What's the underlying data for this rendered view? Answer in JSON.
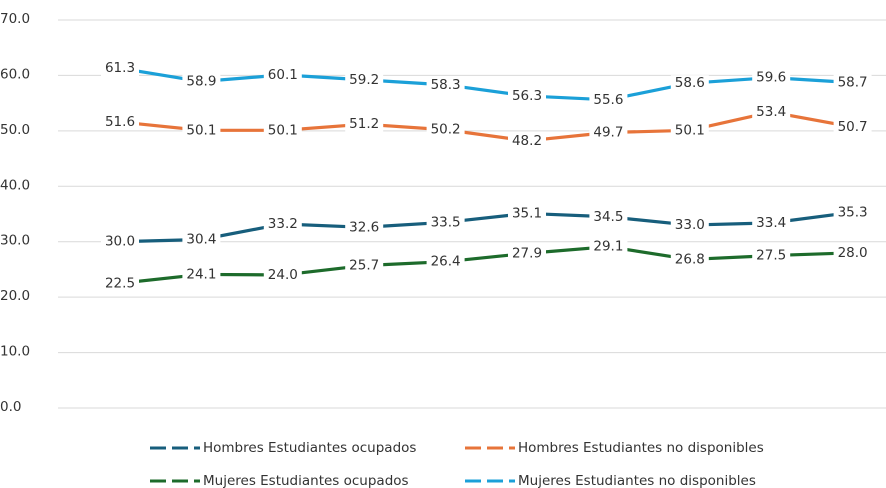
{
  "chart_data": {
    "type": "line",
    "categories": [
      null,
      null,
      null,
      null,
      null,
      null,
      null,
      null,
      null,
      null
    ],
    "ylim": [
      0,
      70
    ],
    "yticks": [
      {
        "value": 0,
        "label": "0.0"
      },
      {
        "value": 10,
        "label": "10.0"
      },
      {
        "value": 20,
        "label": "20.0"
      },
      {
        "value": 30,
        "label": "30.0"
      },
      {
        "value": 40,
        "label": "40.0"
      },
      {
        "value": 50,
        "label": "50.0"
      },
      {
        "value": 60,
        "label": "60.0"
      },
      {
        "value": 70,
        "label": "70.0"
      }
    ],
    "grid": true,
    "legend": "bottom",
    "series": [
      {
        "name": "Hombres Estudiantes ocupados",
        "color": "#175e7c",
        "values": [
          30,
          30.4,
          33.2,
          32.6,
          33.5,
          35.1,
          34.5,
          33,
          33.4,
          35.3
        ],
        "value_labels": [
          "30.0",
          "30.4",
          "33.2",
          "32.6",
          "33.5",
          "35.1",
          "34.5",
          "33.0",
          "33.4",
          "35.3"
        ]
      },
      {
        "name": "Hombres Estudiantes no disponibles",
        "color": "#e7743a",
        "values": [
          51.6,
          50.1,
          50.1,
          51.2,
          50.2,
          48.2,
          49.7,
          50.1,
          53.4,
          50.7
        ],
        "value_labels": [
          "51.6",
          "50.1",
          "50.1",
          "51.2",
          "50.2",
          "48.2",
          "49.7",
          "50.1",
          "53.4",
          "50.7"
        ]
      },
      {
        "name": "Mujeres Estudiantes ocupados",
        "color": "#1d6b2b",
        "values": [
          22.5,
          24.1,
          24,
          25.7,
          26.4,
          27.9,
          29.1,
          26.8,
          27.5,
          28
        ],
        "value_labels": [
          "22.5",
          "24.1",
          "24.0",
          "25.7",
          "26.4",
          "27.9",
          "29.1",
          "26.8",
          "27.5",
          "28.0"
        ]
      },
      {
        "name": "Mujeres Estudiantes no disponibles",
        "color": "#1ba0d8",
        "values": [
          61.3,
          58.9,
          60.1,
          59.2,
          58.3,
          56.3,
          55.6,
          58.6,
          59.6,
          58.7
        ],
        "value_labels": [
          "61.3",
          "58.9",
          "60.1",
          "59.2",
          "58.3",
          "56.3",
          "55.6",
          "58.6",
          "59.6",
          "58.7"
        ]
      }
    ]
  }
}
